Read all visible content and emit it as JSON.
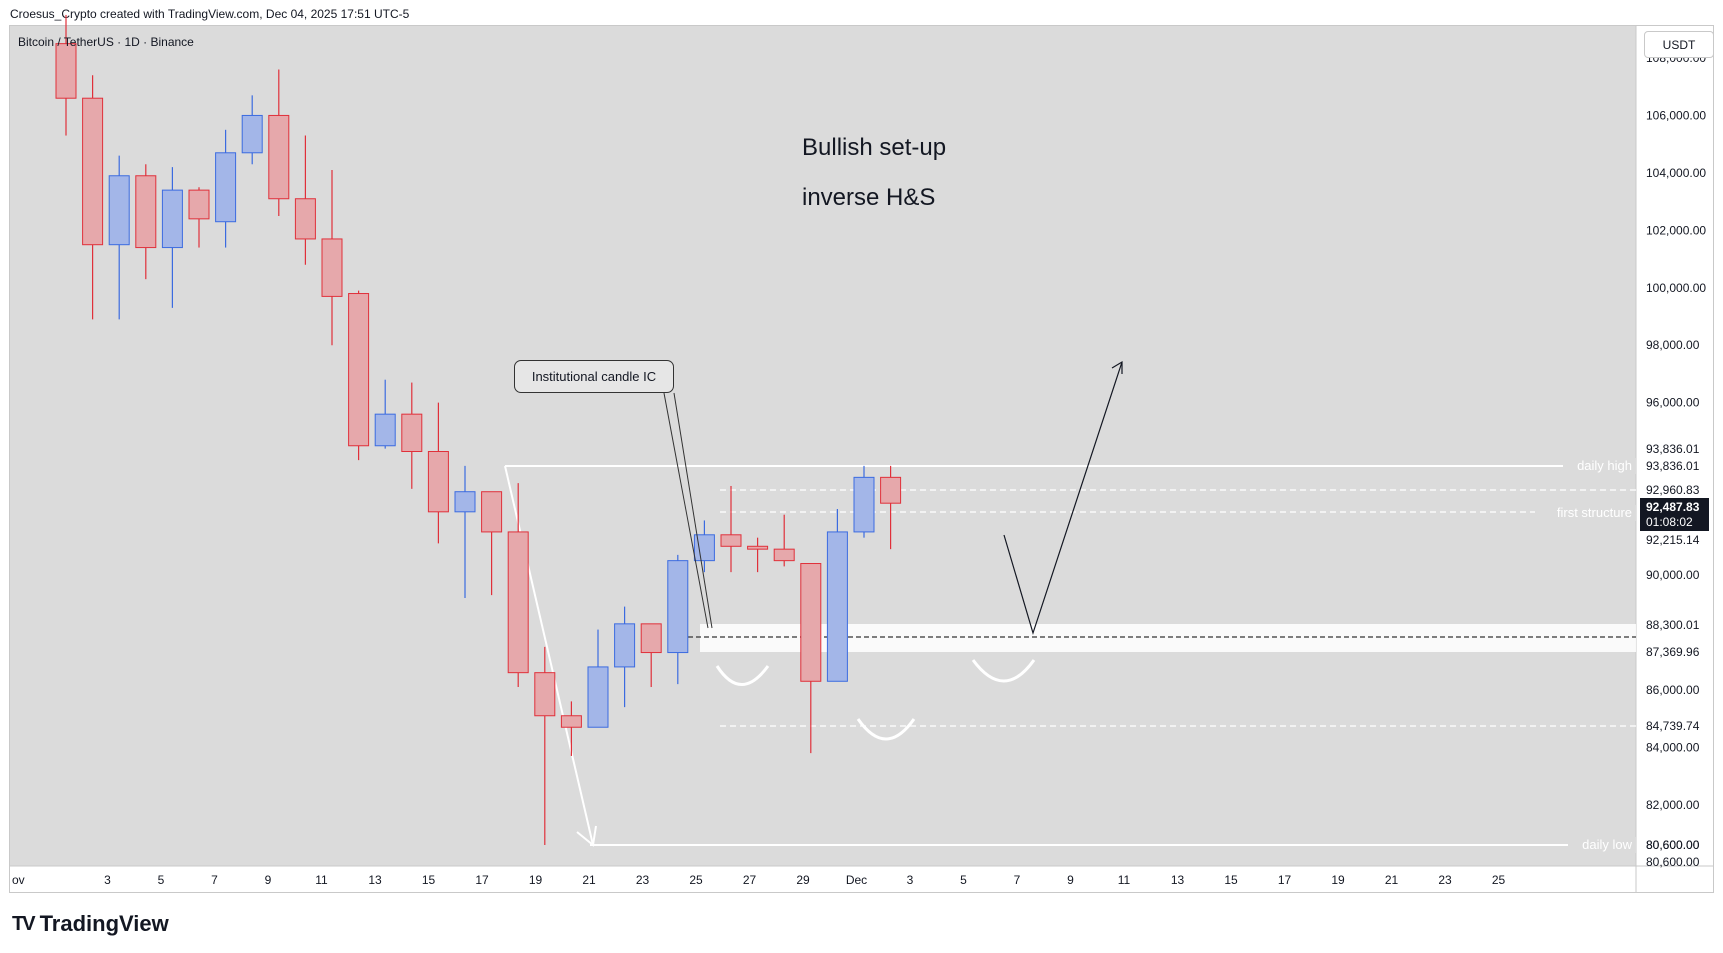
{
  "header": {
    "credit": "Croesus_Crypto created with TradingView.com, Dec 04, 2025 17:51 UTC-5"
  },
  "symbol": "Bitcoin / TetherUS · 1D · Binance",
  "currency": "USDT",
  "notes": [
    "Bullish set-up",
    "inverse H&S"
  ],
  "callout": "Institutional candle IC",
  "brand": {
    "logo": "TV",
    "name": "TradingView"
  },
  "colors": {
    "background": "#dbdbdb",
    "up_fill": "#a3b6e8",
    "up_border": "#3b6be0",
    "down_fill": "#e6a8ab",
    "down_border": "#e0303a"
  },
  "chart_data": {
    "type": "candlestick",
    "y_axis": {
      "ticks": [
        "108,000.00",
        "106,000.00",
        "104,000.00",
        "102,000.00",
        "100,000.00",
        "98,000.00",
        "96,000.00",
        "90,000.00",
        "86,000.00",
        "84,000.00",
        "82,000.00",
        "80,600.00"
      ],
      "min": 80000,
      "max": 109000
    },
    "x_axis": {
      "labels": [
        "ov",
        "3",
        "5",
        "7",
        "9",
        "11",
        "13",
        "15",
        "17",
        "19",
        "21",
        "23",
        "25",
        "27",
        "29",
        "Dec",
        "3",
        "5",
        "7",
        "9",
        "11",
        "13",
        "15",
        "17",
        "19",
        "21",
        "23",
        "25"
      ]
    },
    "candles": [
      {
        "o": 108500,
        "h": 109500,
        "l": 105300,
        "c": 106600
      },
      {
        "o": 106600,
        "h": 107400,
        "l": 98900,
        "c": 101500
      },
      {
        "o": 101500,
        "h": 104600,
        "l": 98900,
        "c": 103900
      },
      {
        "o": 103900,
        "h": 104300,
        "l": 100300,
        "c": 101400
      },
      {
        "o": 101400,
        "h": 104200,
        "l": 99300,
        "c": 103400
      },
      {
        "o": 103400,
        "h": 103500,
        "l": 101400,
        "c": 102400
      },
      {
        "o": 102300,
        "h": 105500,
        "l": 101400,
        "c": 104700
      },
      {
        "o": 104700,
        "h": 106700,
        "l": 104300,
        "c": 106000
      },
      {
        "o": 106000,
        "h": 107600,
        "l": 102500,
        "c": 103100
      },
      {
        "o": 103100,
        "h": 105300,
        "l": 100800,
        "c": 101700
      },
      {
        "o": 101700,
        "h": 104100,
        "l": 98000,
        "c": 99700
      },
      {
        "o": 99800,
        "h": 99900,
        "l": 94000,
        "c": 94500
      },
      {
        "o": 94500,
        "h": 96800,
        "l": 94400,
        "c": 95600
      },
      {
        "o": 95600,
        "h": 96700,
        "l": 93000,
        "c": 94300
      },
      {
        "o": 94300,
        "h": 96000,
        "l": 91100,
        "c": 92200
      },
      {
        "o": 92200,
        "h": 93800,
        "l": 89200,
        "c": 92900
      },
      {
        "o": 92900,
        "h": 92900,
        "l": 89300,
        "c": 91500
      },
      {
        "o": 91500,
        "h": 93200,
        "l": 86100,
        "c": 86600
      },
      {
        "o": 86600,
        "h": 87500,
        "l": 80600,
        "c": 85100
      },
      {
        "o": 85100,
        "h": 85600,
        "l": 83700,
        "c": 84700
      },
      {
        "o": 84700,
        "h": 88100,
        "l": 84700,
        "c": 86800
      },
      {
        "o": 86800,
        "h": 88900,
        "l": 85400,
        "c": 88300
      },
      {
        "o": 88300,
        "h": 88300,
        "l": 86100,
        "c": 87300
      },
      {
        "o": 87300,
        "h": 90700,
        "l": 86200,
        "c": 90500
      },
      {
        "o": 90500,
        "h": 91900,
        "l": 90100,
        "c": 91400
      },
      {
        "o": 91400,
        "h": 93100,
        "l": 90100,
        "c": 91000
      },
      {
        "o": 91000,
        "h": 91300,
        "l": 90100,
        "c": 90900
      },
      {
        "o": 90900,
        "h": 92100,
        "l": 90300,
        "c": 90500
      },
      {
        "o": 90400,
        "h": 90400,
        "l": 83800,
        "c": 86300
      },
      {
        "o": 86300,
        "h": 92300,
        "l": 86300,
        "c": 91500
      },
      {
        "o": 91500,
        "h": 93800,
        "l": 91300,
        "c": 93400
      },
      {
        "o": 93400,
        "h": 93800,
        "l": 90900,
        "c": 92500
      }
    ],
    "levels": [
      {
        "label": "daily high",
        "value": "93,836.01"
      },
      {
        "label": "first structure",
        "value": "92,215.14"
      },
      {
        "label": "daily low",
        "value": "80,600.00"
      }
    ],
    "price_labels": [
      "93,836.01",
      "93,836.01",
      "92,960.83",
      "92,215.14",
      "88,300.01",
      "87,369.96",
      "84,739.74",
      "80,600.00",
      "80,600.00"
    ],
    "last_price": {
      "value": "92,487.83",
      "countdown": "01:08:02"
    }
  }
}
